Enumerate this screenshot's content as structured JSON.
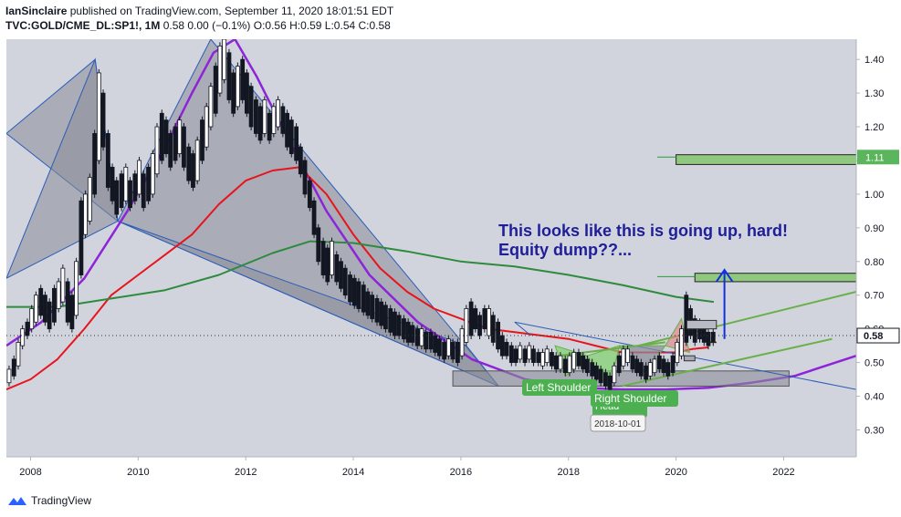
{
  "header": {
    "author": "IanSinclaire",
    "published_text": "published on TradingView.com, September 11, 2020 18:01:51 EDT",
    "symbol": "TVC:GOLD/CME_DL:SP1!, 1M",
    "ohlc_text": "0.58 0.00 (−0.1%) O:0.56 H:0.59 L:0.54 C:0.58"
  },
  "footer": {
    "brand": "TradingView"
  },
  "colors": {
    "background": "#d1d4dc",
    "purple_curve": "#8e24d8",
    "red_ma": "#e8141c",
    "green_ma": "#2e8b3e",
    "light_green_lines": "#6aaf4a",
    "blue_line": "#2a5cb8",
    "annotation_text": "#1e1e9a",
    "triangle_fill": "#8a8d99",
    "label_green": "#4caf50"
  },
  "chart_data": {
    "type": "line",
    "title": "",
    "xlabel": "",
    "ylabel": "",
    "x_ticks": [
      "2008",
      "2010",
      "2012",
      "2014",
      "2016",
      "2018",
      "2020",
      "2022"
    ],
    "y_ticks": [
      "1.40",
      "1.30",
      "1.20",
      "1.10",
      "1.00",
      "0.90",
      "0.80",
      "0.70",
      "0.60",
      "0.50",
      "0.40",
      "0.30"
    ],
    "xlim": [
      2007.55,
      2023.35
    ],
    "ylim": [
      0.22,
      1.46
    ],
    "last_price_label": "0.58",
    "level_label": "1.11",
    "grid": false,
    "annotation": [
      "This looks like this is going up, hard!",
      "Equity dump??..."
    ],
    "pattern_labels": {
      "left_shoulder": "Left Shoulder",
      "head": "Head",
      "right_shoulder": "Right Shoulder",
      "date": "2018-10-01"
    },
    "candles": [
      [
        2007.6,
        0.44,
        0.48
      ],
      [
        2007.69,
        0.46,
        0.51
      ],
      [
        2007.77,
        0.49,
        0.56
      ],
      [
        2007.85,
        0.55,
        0.6
      ],
      [
        2007.94,
        0.58,
        0.62
      ],
      [
        2008.02,
        0.6,
        0.66
      ],
      [
        2008.1,
        0.62,
        0.7
      ],
      [
        2008.19,
        0.64,
        0.72
      ],
      [
        2008.27,
        0.62,
        0.7
      ],
      [
        2008.35,
        0.6,
        0.68
      ],
      [
        2008.44,
        0.62,
        0.72
      ],
      [
        2008.52,
        0.66,
        0.74
      ],
      [
        2008.6,
        0.68,
        0.78
      ],
      [
        2008.69,
        0.62,
        0.74
      ],
      [
        2008.77,
        0.6,
        0.7
      ],
      [
        2008.85,
        0.64,
        0.8
      ],
      [
        2008.94,
        0.76,
        0.98
      ],
      [
        2009.02,
        0.88,
        1.0
      ],
      [
        2009.1,
        0.92,
        1.05
      ],
      [
        2009.19,
        1.0,
        1.18
      ],
      [
        2009.27,
        1.1,
        1.36
      ],
      [
        2009.35,
        1.14,
        1.3
      ],
      [
        2009.44,
        1.02,
        1.18
      ],
      [
        2009.52,
        0.98,
        1.08
      ],
      [
        2009.6,
        0.94,
        1.04
      ],
      [
        2009.69,
        0.96,
        1.06
      ],
      [
        2009.77,
        0.98,
        1.08
      ],
      [
        2009.85,
        0.96,
        1.04
      ],
      [
        2009.94,
        0.98,
        1.06
      ],
      [
        2010.02,
        1.0,
        1.1
      ],
      [
        2010.1,
        0.96,
        1.06
      ],
      [
        2010.19,
        0.98,
        1.08
      ],
      [
        2010.27,
        1.0,
        1.12
      ],
      [
        2010.35,
        1.06,
        1.2
      ],
      [
        2010.44,
        1.1,
        1.24
      ],
      [
        2010.52,
        1.12,
        1.22
      ],
      [
        2010.6,
        1.08,
        1.18
      ],
      [
        2010.69,
        1.1,
        1.2
      ],
      [
        2010.77,
        1.12,
        1.22
      ],
      [
        2010.85,
        1.08,
        1.2
      ],
      [
        2010.94,
        1.04,
        1.14
      ],
      [
        2011.02,
        1.02,
        1.12
      ],
      [
        2011.1,
        1.04,
        1.16
      ],
      [
        2011.19,
        1.1,
        1.22
      ],
      [
        2011.27,
        1.14,
        1.26
      ],
      [
        2011.35,
        1.2,
        1.32
      ],
      [
        2011.44,
        1.24,
        1.38
      ],
      [
        2011.52,
        1.3,
        1.44
      ],
      [
        2011.6,
        1.34,
        1.46
      ],
      [
        2011.69,
        1.28,
        1.42
      ],
      [
        2011.77,
        1.24,
        1.36
      ],
      [
        2011.85,
        1.26,
        1.38
      ],
      [
        2011.94,
        1.28,
        1.4
      ],
      [
        2012.02,
        1.24,
        1.36
      ],
      [
        2012.1,
        1.2,
        1.32
      ],
      [
        2012.19,
        1.18,
        1.28
      ],
      [
        2012.27,
        1.16,
        1.26
      ],
      [
        2012.35,
        1.18,
        1.28
      ],
      [
        2012.44,
        1.16,
        1.24
      ],
      [
        2012.52,
        1.18,
        1.26
      ],
      [
        2012.6,
        1.2,
        1.28
      ],
      [
        2012.69,
        1.18,
        1.26
      ],
      [
        2012.77,
        1.14,
        1.24
      ],
      [
        2012.85,
        1.12,
        1.22
      ],
      [
        2012.94,
        1.1,
        1.2
      ],
      [
        2013.02,
        1.06,
        1.14
      ],
      [
        2013.1,
        1.0,
        1.1
      ],
      [
        2013.19,
        0.96,
        1.04
      ],
      [
        2013.27,
        0.88,
        0.98
      ],
      [
        2013.35,
        0.8,
        0.9
      ],
      [
        2013.44,
        0.76,
        0.86
      ],
      [
        2013.52,
        0.74,
        0.84
      ],
      [
        2013.6,
        0.76,
        0.86
      ],
      [
        2013.69,
        0.74,
        0.82
      ],
      [
        2013.77,
        0.72,
        0.8
      ],
      [
        2013.85,
        0.7,
        0.78
      ],
      [
        2013.94,
        0.68,
        0.76
      ],
      [
        2014.02,
        0.67,
        0.75
      ],
      [
        2014.1,
        0.66,
        0.74
      ],
      [
        2014.19,
        0.65,
        0.73
      ],
      [
        2014.27,
        0.64,
        0.71
      ],
      [
        2014.35,
        0.63,
        0.7
      ],
      [
        2014.44,
        0.62,
        0.69
      ],
      [
        2014.52,
        0.61,
        0.68
      ],
      [
        2014.6,
        0.6,
        0.67
      ],
      [
        2014.69,
        0.59,
        0.66
      ],
      [
        2014.77,
        0.58,
        0.65
      ],
      [
        2014.85,
        0.58,
        0.64
      ],
      [
        2014.94,
        0.57,
        0.63
      ],
      [
        2015.02,
        0.56,
        0.62
      ],
      [
        2015.1,
        0.56,
        0.61
      ],
      [
        2015.19,
        0.55,
        0.6
      ],
      [
        2015.27,
        0.55,
        0.6
      ],
      [
        2015.35,
        0.54,
        0.59
      ],
      [
        2015.44,
        0.54,
        0.59
      ],
      [
        2015.52,
        0.53,
        0.58
      ],
      [
        2015.6,
        0.52,
        0.57
      ],
      [
        2015.69,
        0.51,
        0.56
      ],
      [
        2015.77,
        0.52,
        0.57
      ],
      [
        2015.85,
        0.51,
        0.56
      ],
      [
        2015.94,
        0.5,
        0.56
      ],
      [
        2016.02,
        0.52,
        0.6
      ],
      [
        2016.1,
        0.56,
        0.66
      ],
      [
        2016.19,
        0.58,
        0.68
      ],
      [
        2016.27,
        0.6,
        0.66
      ],
      [
        2016.35,
        0.58,
        0.64
      ],
      [
        2016.44,
        0.6,
        0.66
      ],
      [
        2016.52,
        0.58,
        0.66
      ],
      [
        2016.6,
        0.56,
        0.64
      ],
      [
        2016.69,
        0.54,
        0.62
      ],
      [
        2016.77,
        0.52,
        0.58
      ],
      [
        2016.85,
        0.52,
        0.56
      ],
      [
        2016.94,
        0.5,
        0.55
      ],
      [
        2017.02,
        0.5,
        0.54
      ],
      [
        2017.1,
        0.51,
        0.55
      ],
      [
        2017.19,
        0.5,
        0.54
      ],
      [
        2017.27,
        0.51,
        0.55
      ],
      [
        2017.35,
        0.5,
        0.54
      ],
      [
        2017.44,
        0.5,
        0.53
      ],
      [
        2017.52,
        0.49,
        0.53
      ],
      [
        2017.6,
        0.5,
        0.54
      ],
      [
        2017.69,
        0.49,
        0.53
      ],
      [
        2017.77,
        0.48,
        0.52
      ],
      [
        2017.85,
        0.48,
        0.52
      ],
      [
        2017.94,
        0.47,
        0.51
      ],
      [
        2018.02,
        0.47,
        0.52
      ],
      [
        2018.1,
        0.48,
        0.53
      ],
      [
        2018.19,
        0.49,
        0.53
      ],
      [
        2018.27,
        0.48,
        0.52
      ],
      [
        2018.35,
        0.47,
        0.51
      ],
      [
        2018.44,
        0.46,
        0.5
      ],
      [
        2018.52,
        0.45,
        0.49
      ],
      [
        2018.6,
        0.44,
        0.48
      ],
      [
        2018.69,
        0.43,
        0.47
      ],
      [
        2018.77,
        0.42,
        0.46
      ],
      [
        2018.85,
        0.44,
        0.49
      ],
      [
        2018.94,
        0.47,
        0.52
      ],
      [
        2019.02,
        0.49,
        0.54
      ],
      [
        2019.1,
        0.5,
        0.54
      ],
      [
        2019.19,
        0.48,
        0.52
      ],
      [
        2019.27,
        0.47,
        0.51
      ],
      [
        2019.35,
        0.46,
        0.5
      ],
      [
        2019.44,
        0.45,
        0.49
      ],
      [
        2019.52,
        0.46,
        0.5
      ],
      [
        2019.6,
        0.47,
        0.51
      ],
      [
        2019.69,
        0.48,
        0.52
      ],
      [
        2019.77,
        0.47,
        0.51
      ],
      [
        2019.85,
        0.46,
        0.5
      ],
      [
        2019.94,
        0.47,
        0.52
      ],
      [
        2020.02,
        0.5,
        0.56
      ],
      [
        2020.1,
        0.52,
        0.6
      ],
      [
        2020.19,
        0.56,
        0.7
      ],
      [
        2020.27,
        0.58,
        0.66
      ],
      [
        2020.35,
        0.56,
        0.63
      ],
      [
        2020.44,
        0.57,
        0.62
      ],
      [
        2020.52,
        0.56,
        0.61
      ],
      [
        2020.6,
        0.55,
        0.59
      ],
      [
        2020.69,
        0.56,
        0.59
      ]
    ],
    "series": [
      {
        "color": "#8e24d8",
        "x": [
          2007.55,
          2008.2,
          2009.0,
          2009.8,
          2010.5,
          2011.0,
          2011.4,
          2011.8,
          2012.2,
          2012.8,
          2013.5,
          2014.3,
          2015.2,
          2016.2,
          2017.2,
          2018.2,
          2019.0,
          2019.8,
          2020.6,
          2021.4,
          2022.2,
          2023.35
        ],
        "y": [
          0.55,
          0.62,
          0.75,
          0.95,
          1.14,
          1.3,
          1.42,
          1.46,
          1.35,
          1.16,
          0.95,
          0.76,
          0.62,
          0.51,
          0.45,
          0.425,
          0.42,
          0.42,
          0.425,
          0.44,
          0.46,
          0.52
        ]
      },
      {
        "color": "#e8141c",
        "x": [
          2007.55,
          2008.0,
          2008.5,
          2009.0,
          2009.5,
          2010.0,
          2010.5,
          2011.0,
          2011.5,
          2012.0,
          2012.5,
          2013.0,
          2013.5,
          2014.0,
          2014.5,
          2015.0,
          2015.5,
          2016.0,
          2016.5,
          2017.0,
          2017.5,
          2018.0,
          2018.5,
          2019.0,
          2019.5,
          2020.0,
          2020.3,
          2020.6
        ],
        "y": [
          0.42,
          0.45,
          0.51,
          0.6,
          0.7,
          0.76,
          0.82,
          0.88,
          0.97,
          1.04,
          1.07,
          1.08,
          1.0,
          0.88,
          0.78,
          0.71,
          0.66,
          0.63,
          0.6,
          0.59,
          0.58,
          0.57,
          0.55,
          0.53,
          0.53,
          0.53,
          0.54,
          0.545
        ]
      },
      {
        "color": "#2e8b3e",
        "x": [
          2007.55,
          2008.5,
          2009.5,
          2010.5,
          2011.5,
          2012.5,
          2013.2,
          2014.0,
          2015.0,
          2016.0,
          2017.0,
          2018.0,
          2019.0,
          2020.0,
          2020.7
        ],
        "y": [
          0.665,
          0.665,
          0.69,
          0.715,
          0.76,
          0.825,
          0.86,
          0.855,
          0.83,
          0.8,
          0.785,
          0.76,
          0.73,
          0.695,
          0.68
        ]
      }
    ]
  }
}
